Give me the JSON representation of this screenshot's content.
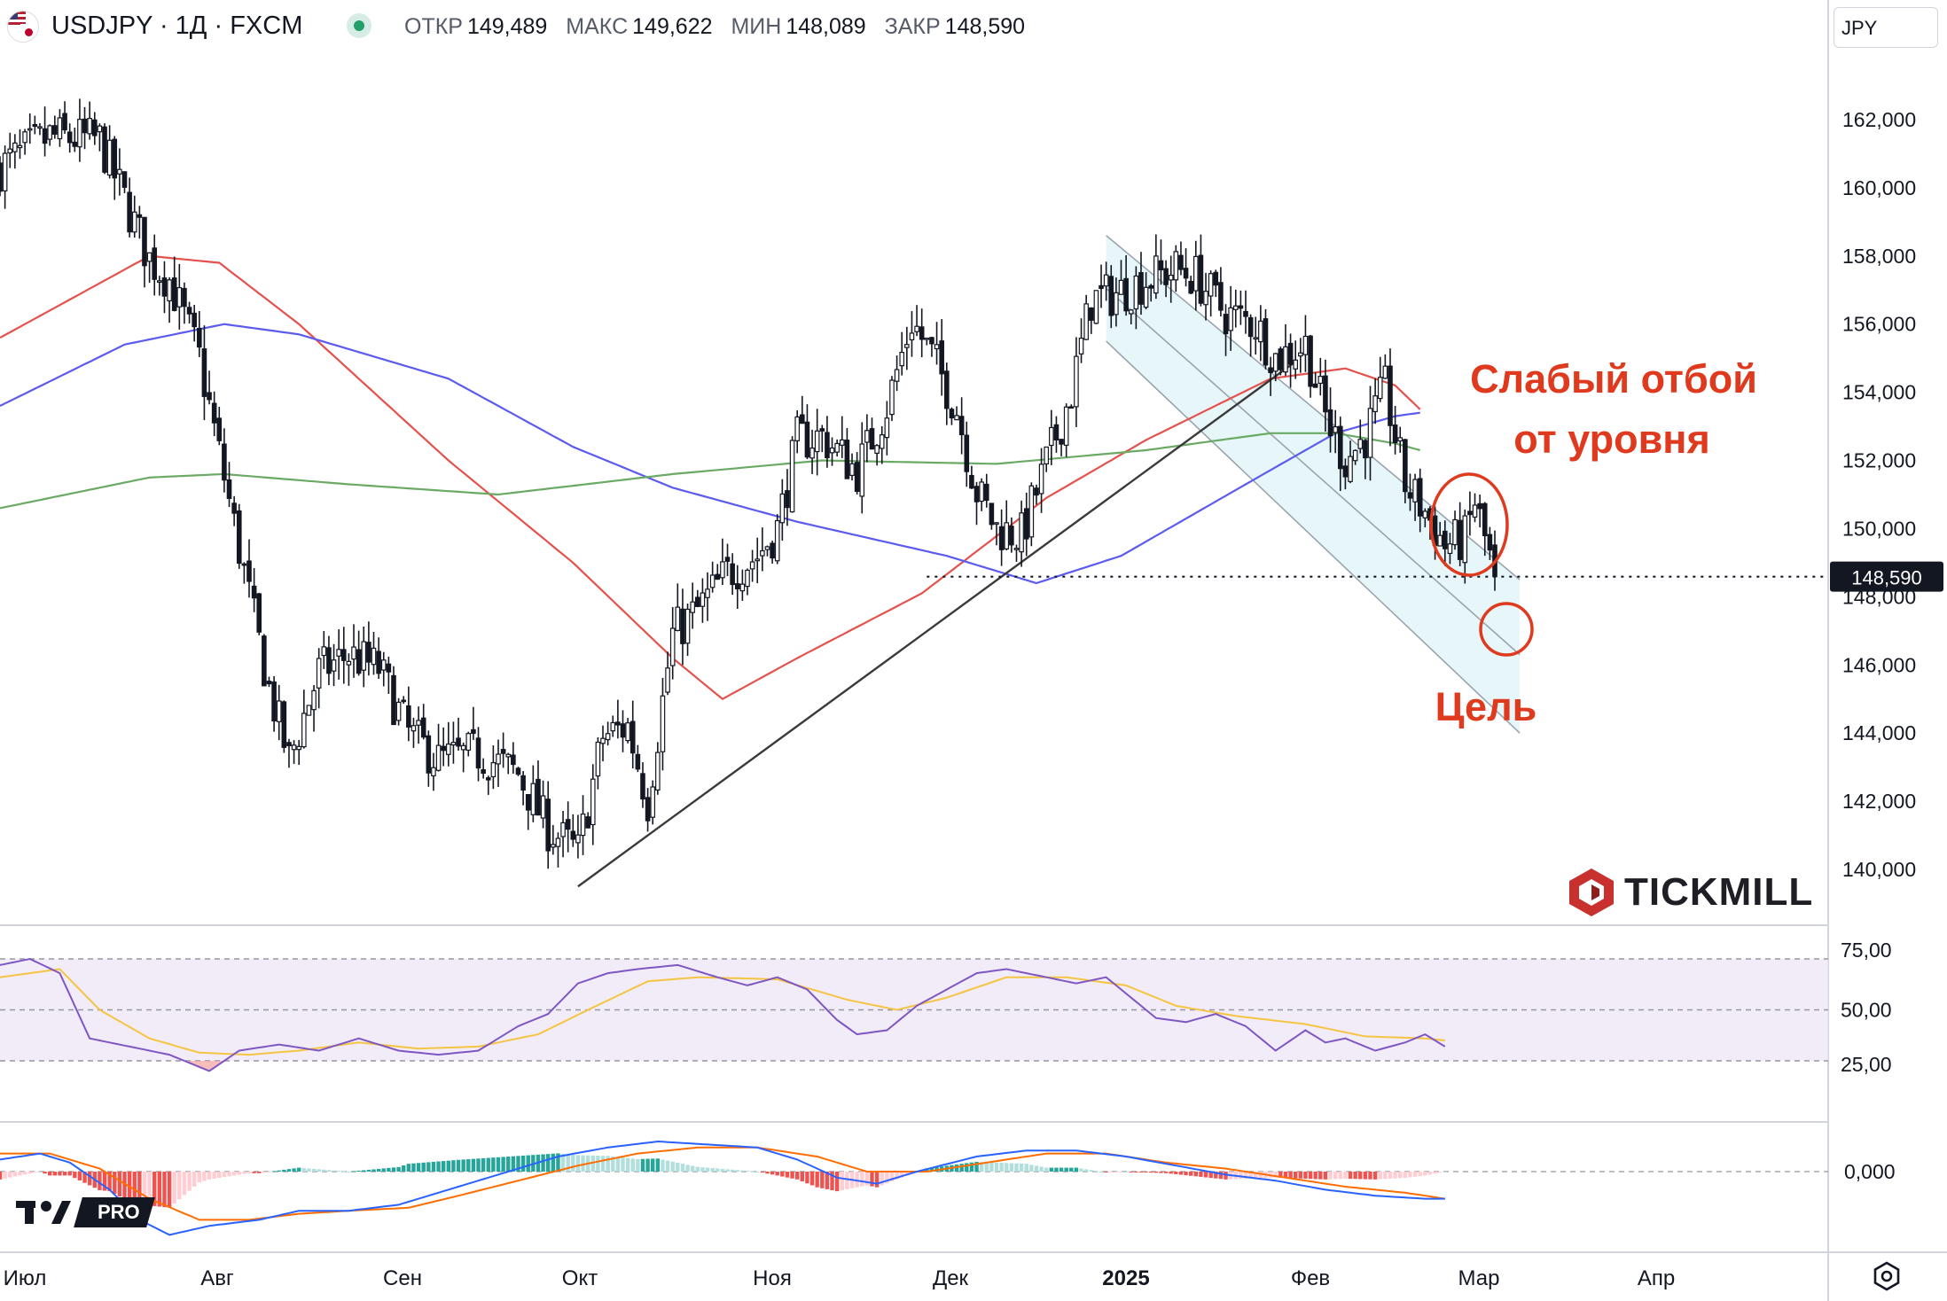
{
  "header": {
    "symbol": "USDJPY · 1Д · FXCM",
    "ohlc": [
      {
        "k": "ОТКР",
        "v": "149,489"
      },
      {
        "k": "МАКС",
        "v": "149,622"
      },
      {
        "k": "МИН",
        "v": "148,089"
      },
      {
        "k": "ЗАКР",
        "v": "148,590"
      }
    ],
    "currency": "JPY",
    "flag_icon": "usd-jpy-flag-icon",
    "status_icon": "market-open-dot-icon"
  },
  "colors": {
    "up_candle": "#ffffff",
    "down_candle": "#131722",
    "ema_red": "#e5524d",
    "ema_blue": "#5b5bf0",
    "ema_green": "#6aaa64",
    "channel_fill": "#e3f4f8",
    "annotation_red": "#e03a1e",
    "rsi_line": "#7e57c2",
    "rsi_ma": "#f5c542",
    "macd_line": "#2962ff",
    "signal_line": "#ff6d00",
    "hist_pos": "#26a69a",
    "hist_neg": "#ef5350"
  },
  "annotations": {
    "weak_bounce_line1": "Слабый отбой",
    "weak_bounce_line2": "от уровня",
    "target": "Цель"
  },
  "branding": {
    "tickmill": "TICKMILL",
    "tv_pro": "PRO",
    "tv_mark": "17"
  },
  "chart_data": {
    "type": "candlestick",
    "instrument": "USDJPY",
    "timeframe": "1Д",
    "source": "FXCM",
    "x_labels": [
      "Июл",
      "Авг",
      "Сен",
      "Окт",
      "Ноя",
      "Дек",
      "2025",
      "Фев",
      "Мар",
      "Апр"
    ],
    "y_axis": {
      "ticks": [
        "140,000",
        "142,000",
        "144,000",
        "146,000",
        "148,000",
        "150,000",
        "152,000",
        "154,000",
        "156,000",
        "158,000",
        "160,000",
        "162,000"
      ],
      "range": [
        139.0,
        163.0
      ]
    },
    "last_price": "148,590",
    "last_price_value": 148.59,
    "price_path": [
      [
        0,
        160.6
      ],
      [
        10,
        161.5
      ],
      [
        20,
        161.4
      ],
      [
        24,
        160.0
      ],
      [
        30,
        157.9
      ],
      [
        34,
        157.3
      ],
      [
        40,
        155.0
      ],
      [
        45,
        151.5
      ],
      [
        50,
        148.0
      ],
      [
        54,
        145.3
      ],
      [
        58,
        143.2
      ],
      [
        64,
        145.8
      ],
      [
        70,
        146.3
      ],
      [
        76,
        145.9
      ],
      [
        82,
        144.0
      ],
      [
        88,
        143.2
      ],
      [
        96,
        143.4
      ],
      [
        104,
        142.8
      ],
      [
        110,
        141.2
      ],
      [
        116,
        140.5
      ],
      [
        121,
        143.9
      ],
      [
        126,
        144.2
      ],
      [
        130,
        142.0
      ],
      [
        135,
        146.9
      ],
      [
        140,
        147.6
      ],
      [
        146,
        148.7
      ],
      [
        152,
        149.2
      ],
      [
        156,
        150.0
      ],
      [
        160,
        152.6
      ],
      [
        165,
        152.7
      ],
      [
        172,
        151.7
      ],
      [
        178,
        153.6
      ],
      [
        183,
        156.1
      ],
      [
        188,
        154.8
      ],
      [
        192,
        153.5
      ],
      [
        196,
        151.1
      ],
      [
        200,
        150.0
      ],
      [
        205,
        149.8
      ],
      [
        210,
        151.9
      ],
      [
        215,
        154.0
      ],
      [
        219,
        156.7
      ],
      [
        224,
        156.9
      ],
      [
        230,
        157.3
      ],
      [
        236,
        157.6
      ],
      [
        240,
        157.4
      ],
      [
        246,
        156.3
      ],
      [
        252,
        156.0
      ],
      [
        256,
        155.0
      ],
      [
        262,
        155.4
      ],
      [
        266,
        153.3
      ],
      [
        270,
        152.0
      ],
      [
        274,
        152.7
      ],
      [
        278,
        154.1
      ],
      [
        282,
        151.3
      ],
      [
        286,
        150.5
      ],
      [
        290,
        149.5
      ],
      [
        294,
        149.7
      ],
      [
        296,
        150.8
      ],
      [
        300,
        148.59
      ]
    ],
    "moving_averages": [
      {
        "name": "EMA red",
        "points": [
          [
            0,
            155.6
          ],
          [
            30,
            158.0
          ],
          [
            44,
            157.8
          ],
          [
            60,
            156.0
          ],
          [
            90,
            152.0
          ],
          [
            115,
            149.0
          ],
          [
            135,
            146.2
          ],
          [
            145,
            145.0
          ],
          [
            160,
            146.2
          ],
          [
            185,
            148.1
          ],
          [
            210,
            150.9
          ],
          [
            230,
            152.6
          ],
          [
            255,
            154.4
          ],
          [
            270,
            154.7
          ],
          [
            280,
            154.2
          ],
          [
            285,
            153.5
          ]
        ]
      },
      {
        "name": "EMA blue",
        "points": [
          [
            0,
            153.6
          ],
          [
            25,
            155.4
          ],
          [
            45,
            156.0
          ],
          [
            60,
            155.7
          ],
          [
            90,
            154.4
          ],
          [
            115,
            152.4
          ],
          [
            135,
            151.2
          ],
          [
            160,
            150.2
          ],
          [
            190,
            149.2
          ],
          [
            208,
            148.4
          ],
          [
            225,
            149.2
          ],
          [
            250,
            151.3
          ],
          [
            268,
            152.8
          ],
          [
            280,
            153.3
          ],
          [
            285,
            153.4
          ]
        ]
      },
      {
        "name": "SMA green",
        "points": [
          [
            0,
            150.6
          ],
          [
            30,
            151.5
          ],
          [
            45,
            151.6
          ],
          [
            70,
            151.3
          ],
          [
            100,
            151.0
          ],
          [
            135,
            151.6
          ],
          [
            165,
            152.0
          ],
          [
            200,
            151.9
          ],
          [
            230,
            152.3
          ],
          [
            255,
            152.8
          ],
          [
            268,
            152.8
          ],
          [
            280,
            152.5
          ],
          [
            285,
            152.3
          ]
        ]
      }
    ],
    "trendline": [
      [
        116,
        139.5
      ],
      [
        260,
        154.9
      ]
    ],
    "horizontal_level": 148.59,
    "channel": {
      "top_start": [
        222,
        158.6
      ],
      "top_end": [
        305,
        148.5
      ],
      "mid_end": [
        305,
        146.3
      ],
      "bottom_start": [
        222,
        155.5
      ],
      "bottom_end": [
        305,
        144.0
      ]
    },
    "rsi": {
      "levels": [
        "75,00",
        "50,00",
        "25,00"
      ],
      "level_values": [
        75,
        50,
        25
      ],
      "points": [
        [
          0,
          72
        ],
        [
          6,
          75
        ],
        [
          12,
          68
        ],
        [
          18,
          36
        ],
        [
          26,
          32
        ],
        [
          34,
          28
        ],
        [
          42,
          20
        ],
        [
          48,
          30
        ],
        [
          56,
          33
        ],
        [
          64,
          30
        ],
        [
          72,
          36
        ],
        [
          80,
          30
        ],
        [
          88,
          28
        ],
        [
          96,
          30
        ],
        [
          104,
          42
        ],
        [
          110,
          48
        ],
        [
          116,
          63
        ],
        [
          122,
          68
        ],
        [
          128,
          70
        ],
        [
          136,
          72
        ],
        [
          144,
          66
        ],
        [
          150,
          62
        ],
        [
          156,
          66
        ],
        [
          162,
          60
        ],
        [
          168,
          45
        ],
        [
          172,
          38
        ],
        [
          178,
          40
        ],
        [
          184,
          52
        ],
        [
          190,
          60
        ],
        [
          196,
          68
        ],
        [
          202,
          70
        ],
        [
          210,
          66
        ],
        [
          216,
          63
        ],
        [
          222,
          66
        ],
        [
          226,
          58
        ],
        [
          232,
          46
        ],
        [
          238,
          44
        ],
        [
          244,
          48
        ],
        [
          250,
          42
        ],
        [
          256,
          30
        ],
        [
          262,
          40
        ],
        [
          266,
          34
        ],
        [
          270,
          36
        ],
        [
          276,
          30
        ],
        [
          282,
          34
        ],
        [
          286,
          38
        ],
        [
          290,
          32
        ]
      ],
      "ma_points": [
        [
          0,
          66
        ],
        [
          12,
          70
        ],
        [
          20,
          50
        ],
        [
          30,
          36
        ],
        [
          40,
          29
        ],
        [
          50,
          28
        ],
        [
          60,
          30
        ],
        [
          72,
          34
        ],
        [
          84,
          31
        ],
        [
          96,
          32
        ],
        [
          108,
          38
        ],
        [
          118,
          50
        ],
        [
          130,
          64
        ],
        [
          140,
          66
        ],
        [
          156,
          65
        ],
        [
          170,
          55
        ],
        [
          180,
          50
        ],
        [
          190,
          56
        ],
        [
          202,
          66
        ],
        [
          214,
          66
        ],
        [
          226,
          62
        ],
        [
          236,
          52
        ],
        [
          248,
          47
        ],
        [
          262,
          43
        ],
        [
          274,
          37
        ],
        [
          286,
          36
        ],
        [
          290,
          35
        ]
      ]
    },
    "macd": {
      "zero_label": "0,000",
      "macd_points": [
        [
          0,
          0.4
        ],
        [
          8,
          0.6
        ],
        [
          14,
          0.3
        ],
        [
          22,
          -0.6
        ],
        [
          28,
          -1.6
        ],
        [
          34,
          -2.1
        ],
        [
          42,
          -1.8
        ],
        [
          52,
          -1.6
        ],
        [
          60,
          -1.3
        ],
        [
          70,
          -1.3
        ],
        [
          80,
          -1.1
        ],
        [
          90,
          -0.6
        ],
        [
          100,
          -0.1
        ],
        [
          112,
          0.5
        ],
        [
          122,
          0.8
        ],
        [
          132,
          1.0
        ],
        [
          142,
          0.9
        ],
        [
          152,
          0.8
        ],
        [
          160,
          0.4
        ],
        [
          168,
          -0.2
        ],
        [
          176,
          -0.4
        ],
        [
          184,
          0.0
        ],
        [
          196,
          0.5
        ],
        [
          206,
          0.7
        ],
        [
          216,
          0.7
        ],
        [
          226,
          0.5
        ],
        [
          236,
          0.2
        ],
        [
          246,
          -0.1
        ],
        [
          256,
          -0.3
        ],
        [
          266,
          -0.6
        ],
        [
          276,
          -0.8
        ],
        [
          286,
          -0.9
        ],
        [
          290,
          -0.9
        ]
      ],
      "signal_points": [
        [
          0,
          0.6
        ],
        [
          10,
          0.6
        ],
        [
          20,
          0.1
        ],
        [
          30,
          -0.9
        ],
        [
          40,
          -1.6
        ],
        [
          50,
          -1.6
        ],
        [
          60,
          -1.4
        ],
        [
          70,
          -1.3
        ],
        [
          82,
          -1.2
        ],
        [
          92,
          -0.8
        ],
        [
          104,
          -0.3
        ],
        [
          116,
          0.2
        ],
        [
          128,
          0.6
        ],
        [
          140,
          0.8
        ],
        [
          152,
          0.8
        ],
        [
          164,
          0.5
        ],
        [
          174,
          0.0
        ],
        [
          186,
          0.0
        ],
        [
          198,
          0.3
        ],
        [
          210,
          0.6
        ],
        [
          222,
          0.6
        ],
        [
          234,
          0.3
        ],
        [
          246,
          0.1
        ],
        [
          258,
          -0.2
        ],
        [
          270,
          -0.5
        ],
        [
          282,
          -0.7
        ],
        [
          290,
          -0.9
        ]
      ]
    }
  }
}
